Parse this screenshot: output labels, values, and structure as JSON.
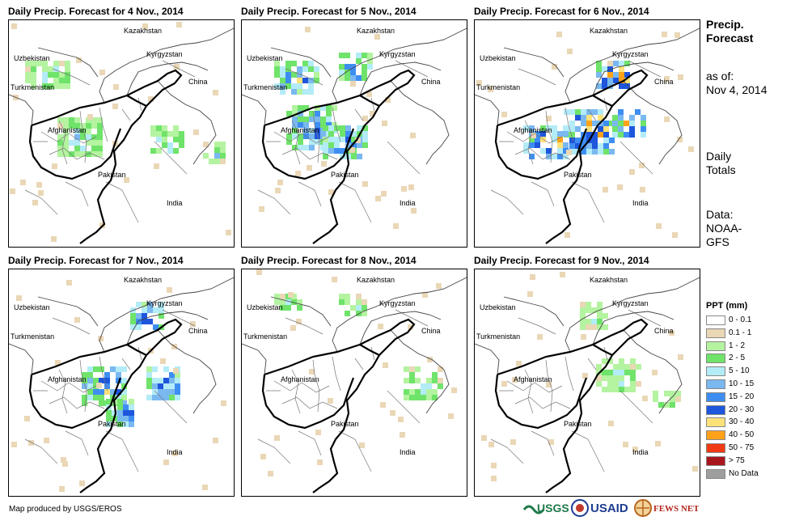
{
  "panels": [
    {
      "title": "Daily Precip. Forecast for 4 Nov., 2014",
      "day": 0
    },
    {
      "title": "Daily Precip. Forecast for 5 Nov., 2014",
      "day": 1
    },
    {
      "title": "Daily Precip. Forecast for 6 Nov., 2014",
      "day": 2
    },
    {
      "title": "Daily Precip. Forecast for 7 Nov., 2014",
      "day": 3
    },
    {
      "title": "Daily Precip. Forecast for 8 Nov., 2014",
      "day": 4
    },
    {
      "title": "Daily Precip. Forecast for 9 Nov., 2014",
      "day": 5
    }
  ],
  "countries": {
    "kazakhstan": "Kazakhstan",
    "uzbekistan": "Uzbekistan",
    "kyrgyzstan": "Kyrgyzstan",
    "turkmenistan": "Turkmenistan",
    "china": "China",
    "afghanistan": "Afghanistan",
    "pakistan": "Pakistan",
    "india": "India"
  },
  "side": {
    "title_line1": "Precip.",
    "title_line2": "Forecast",
    "asof_line1": "as of:",
    "asof_line2": "Nov 4, 2014",
    "daily_line1": "Daily",
    "daily_line2": "Totals",
    "data_line1": "Data:",
    "data_line2": "NOAA-",
    "data_line3": "GFS"
  },
  "legend": {
    "title": "PPT (mm)",
    "items": [
      {
        "label": "0 - 0.1",
        "color": "#ffffff"
      },
      {
        "label": "0.1 - 1",
        "color": "#ead7b6"
      },
      {
        "label": "1 - 2",
        "color": "#b4f3a0"
      },
      {
        "label": "2 - 5",
        "color": "#6fe36a"
      },
      {
        "label": "5 - 10",
        "color": "#b3ecf7"
      },
      {
        "label": "10 - 15",
        "color": "#7ab8f0"
      },
      {
        "label": "15 - 20",
        "color": "#3e8ef2"
      },
      {
        "label": "20 - 30",
        "color": "#1e56dc"
      },
      {
        "label": "30 - 40",
        "color": "#fde27a"
      },
      {
        "label": "40 - 50",
        "color": "#ffa21a"
      },
      {
        "label": "50 - 75",
        "color": "#f03a13"
      },
      {
        "label": "> 75",
        "color": "#a8161c"
      },
      {
        "label": "No Data",
        "color": "#9e9e9e"
      }
    ]
  },
  "footer": "Map produced by USGS/EROS",
  "logos": {
    "usgs": "USGS",
    "usaid": "USAID",
    "fewsnet": "FEWS NET"
  }
}
